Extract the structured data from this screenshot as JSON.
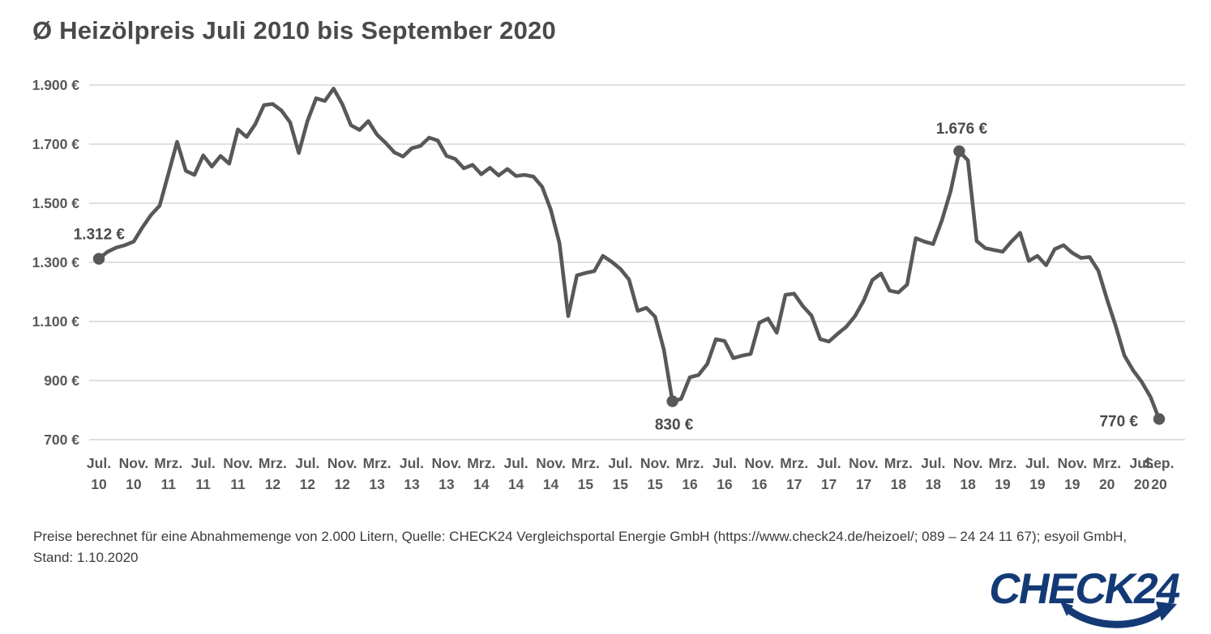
{
  "header": {
    "title": "Ø Heizölpreis Juli 2010 bis September 2020"
  },
  "footer": {
    "line1": "Preise berechnet für eine Abnahmemenge von 2.000 Litern, Quelle: CHECK24 Vergleichsportal Energie GmbH (https://www.check24.de/heizoel/; 089 – 24 24 11 67); esyoil GmbH,",
    "line2": "Stand: 1.10.2020"
  },
  "logo": {
    "text": "CHECK24"
  },
  "colors": {
    "line": "#58585a",
    "marker": "#58585a",
    "grid": "#d6d6d6",
    "axis_text": "#58585a",
    "annotation_text": "#4a4a4c",
    "logo": "#143a76"
  },
  "chart_data": {
    "type": "line",
    "title": "Ø Heizölpreis Juli 2010 bis September 2020",
    "unit": "€",
    "x_start": "Juli 2010",
    "x_end": "September 2020",
    "interval": "monatlich",
    "values": [
      1312,
      1336,
      1350,
      1358,
      1370,
      1418,
      1460,
      1492,
      1600,
      1708,
      1610,
      1596,
      1662,
      1624,
      1660,
      1634,
      1750,
      1724,
      1768,
      1832,
      1836,
      1814,
      1774,
      1670,
      1778,
      1855,
      1846,
      1888,
      1836,
      1764,
      1748,
      1778,
      1732,
      1704,
      1672,
      1658,
      1686,
      1694,
      1722,
      1712,
      1660,
      1650,
      1618,
      1630,
      1598,
      1620,
      1594,
      1616,
      1592,
      1596,
      1590,
      1556,
      1478,
      1365,
      1118,
      1256,
      1264,
      1270,
      1322,
      1302,
      1278,
      1242,
      1136,
      1146,
      1116,
      1006,
      830,
      838,
      911,
      919,
      956,
      1040,
      1034,
      976,
      984,
      990,
      1096,
      1110,
      1062,
      1190,
      1194,
      1152,
      1120,
      1040,
      1032,
      1058,
      1082,
      1118,
      1170,
      1240,
      1262,
      1204,
      1198,
      1225,
      1382,
      1370,
      1362,
      1442,
      1540,
      1676,
      1645,
      1372,
      1348,
      1342,
      1336,
      1370,
      1400,
      1305,
      1322,
      1290,
      1345,
      1358,
      1332,
      1315,
      1318,
      1272,
      1175,
      1085,
      985,
      935,
      895,
      845,
      770
    ],
    "ylim": [
      700,
      1900
    ],
    "ytick_labels": [
      "1.900 €",
      "1.700 €",
      "1.500 €",
      "1.300 €",
      "1.100 €",
      "900 €",
      "700 €"
    ],
    "ytick_values": [
      1900,
      1700,
      1500,
      1300,
      1100,
      900,
      700
    ],
    "xtick_indices": [
      0,
      4,
      8,
      12,
      16,
      20,
      24,
      28,
      32,
      36,
      40,
      44,
      48,
      52,
      56,
      60,
      64,
      68,
      72,
      76,
      80,
      84,
      88,
      92,
      96,
      100,
      104,
      108,
      112,
      116,
      120,
      122
    ],
    "xtick_labels": [
      [
        "Jul.",
        "10"
      ],
      [
        "Nov.",
        "10"
      ],
      [
        "Mrz.",
        "11"
      ],
      [
        "Jul.",
        "11"
      ],
      [
        "Nov.",
        "11"
      ],
      [
        "Mrz.",
        "12"
      ],
      [
        "Jul.",
        "12"
      ],
      [
        "Nov.",
        "12"
      ],
      [
        "Mrz.",
        "13"
      ],
      [
        "Jul.",
        "13"
      ],
      [
        "Nov.",
        "13"
      ],
      [
        "Mrz.",
        "14"
      ],
      [
        "Jul.",
        "14"
      ],
      [
        "Nov.",
        "14"
      ],
      [
        "Mrz.",
        "15"
      ],
      [
        "Jul.",
        "15"
      ],
      [
        "Nov.",
        "15"
      ],
      [
        "Mrz.",
        "16"
      ],
      [
        "Jul.",
        "16"
      ],
      [
        "Nov.",
        "16"
      ],
      [
        "Mrz.",
        "17"
      ],
      [
        "Jul.",
        "17"
      ],
      [
        "Nov.",
        "17"
      ],
      [
        "Mrz.",
        "18"
      ],
      [
        "Jul.",
        "18"
      ],
      [
        "Nov.",
        "18"
      ],
      [
        "Mrz.",
        "19"
      ],
      [
        "Jul.",
        "19"
      ],
      [
        "Nov.",
        "19"
      ],
      [
        "Mrz.",
        "20"
      ],
      [
        "Jul.",
        "20"
      ],
      [
        "Sep.",
        "20"
      ]
    ],
    "annotations": [
      {
        "index": 0,
        "value": 1312,
        "label": "1.312 €",
        "position": "above-left"
      },
      {
        "index": 66,
        "value": 830,
        "label": "830 €",
        "position": "below"
      },
      {
        "index": 99,
        "value": 1676,
        "label": "1.676 €",
        "position": "above"
      },
      {
        "index": 122,
        "value": 770,
        "label": "770 €",
        "position": "left"
      }
    ],
    "grid": "horizontal",
    "legend": "none"
  }
}
